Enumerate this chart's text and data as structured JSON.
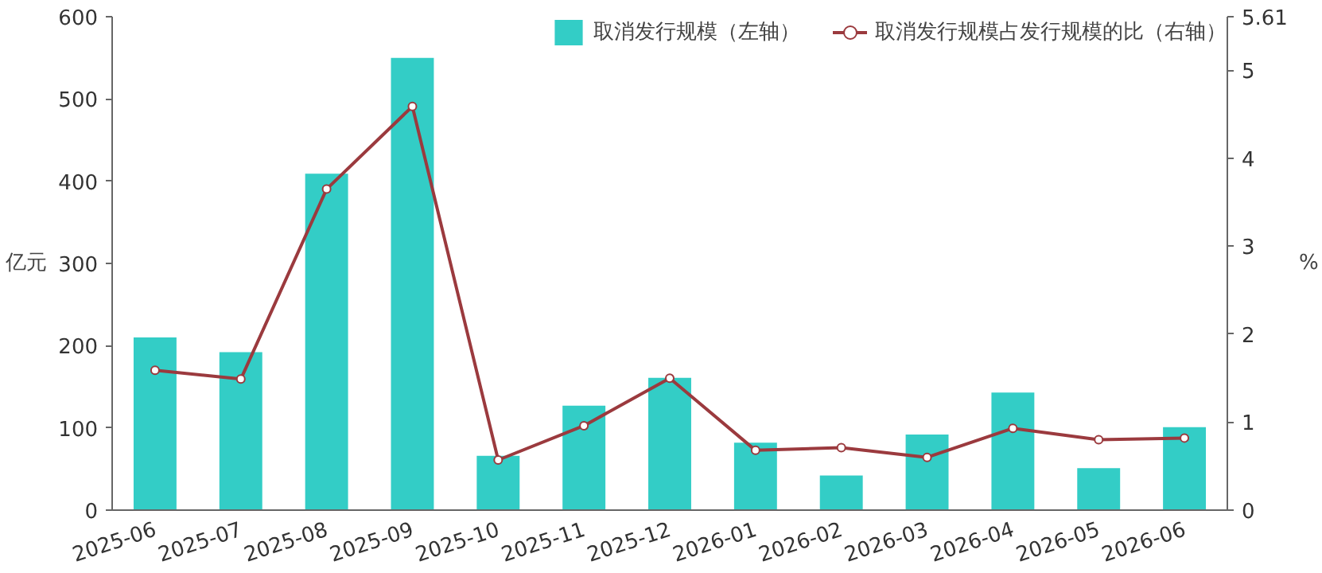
{
  "chart_data": {
    "type": "bar",
    "ylabel": "亿元",
    "y2label": "%",
    "categories": [
      "2025-06",
      "2025-07",
      "2025-08",
      "2025-09",
      "2025-10",
      "2025-11",
      "2025-12",
      "2026-01",
      "2026-02",
      "2026-03",
      "2026-04",
      "2026-05",
      "2026-06"
    ],
    "series": [
      {
        "name": "取消发行规模（左轴）",
        "color": "#33cdc6",
        "values": [
          210,
          192,
          409,
          550,
          66,
          127,
          161,
          82,
          42,
          92,
          143,
          51,
          101
        ]
      },
      {
        "name": "取消发行规模占发行规模的比（右轴）",
        "type": "line",
        "axis": "y2",
        "color": "#9b3a3e",
        "marker": "circle",
        "values": [
          1.59,
          1.49,
          3.65,
          4.59,
          0.57,
          0.96,
          1.5,
          0.68,
          0.71,
          0.6,
          0.93,
          0.8,
          0.82
        ]
      }
    ],
    "ylim": [
      0,
      600
    ],
    "yticks": [
      0,
      100,
      200,
      300,
      400,
      500,
      600
    ],
    "y2lim": [
      0,
      5.61
    ],
    "y2ticks": [
      0,
      1,
      2,
      3,
      4,
      5,
      5.61
    ],
    "grid": false,
    "legend": "top right"
  }
}
